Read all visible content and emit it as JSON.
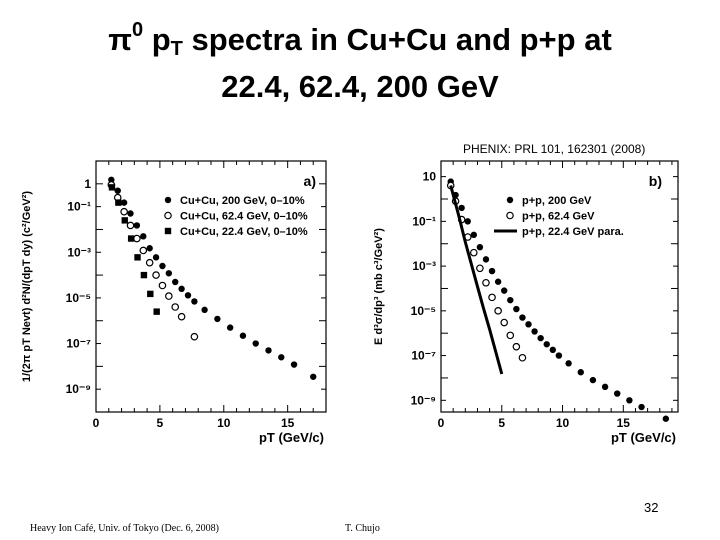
{
  "slide": {
    "title_line1_pi": "π",
    "title_line1_sup": "0",
    "title_line1_p": " p",
    "title_line1_sub": "T",
    "title_line1_rest": " spectra in Cu+Cu and p+p at",
    "title_line2": "22.4, 62.4, 200 GeV",
    "citation": "PHENIX: PRL 101, 162301 (2008)",
    "slide_number": "32",
    "footer_left": "Heavy Ion Café, Univ. of Tokyo (Dec. 6, 2008)",
    "footer_right": "T. Chujo"
  },
  "chart_data": [
    {
      "type": "scatter",
      "panel_label": "a)",
      "xlabel": "pT (GeV/c)",
      "ylabel": "1/(2π pT Nevt) d²N/(dpT dy) (c²/GeV²)",
      "xlim": [
        0,
        18
      ],
      "ylim": [
        1e-10,
        10
      ],
      "yscale": "log",
      "xticks": [
        0,
        5,
        10,
        15
      ],
      "ytick_labels": [
        "1",
        "10⁻¹",
        "10⁻³",
        "10⁻⁵",
        "10⁻⁷",
        "10⁻⁹"
      ],
      "ytick_values": [
        1,
        0.1,
        0.001,
        1e-05,
        1e-07,
        1e-09
      ],
      "legend_position": "top-right",
      "series": [
        {
          "name": "Cu+Cu, 200 GeV, 0–10%",
          "marker": "filled-circle",
          "x": [
            1.2,
            1.7,
            2.2,
            2.7,
            3.2,
            3.7,
            4.2,
            4.7,
            5.2,
            5.7,
            6.2,
            6.7,
            7.2,
            7.7,
            8.5,
            9.5,
            10.5,
            11.5,
            12.5,
            13.5,
            14.5,
            15.5,
            17.0
          ],
          "y": [
            1.5,
            0.5,
            0.15,
            0.05,
            0.015,
            0.005,
            0.0015,
            0.0006,
            0.00025,
            0.00012,
            5e-05,
            2.5e-05,
            1.3e-05,
            7e-06,
            3e-06,
            1.2e-06,
            5e-07,
            2.2e-07,
            1e-07,
            5e-08,
            2.5e-08,
            1.2e-08,
            3.5e-09
          ]
        },
        {
          "name": "Cu+Cu, 62.4 GeV, 0–10%",
          "marker": "open-circle",
          "x": [
            1.2,
            1.7,
            2.2,
            2.7,
            3.2,
            3.7,
            4.2,
            4.7,
            5.2,
            5.7,
            6.2,
            6.7,
            7.7
          ],
          "y": [
            0.9,
            0.25,
            0.06,
            0.015,
            0.004,
            0.0012,
            0.00035,
            0.0001,
            3.5e-05,
            1.2e-05,
            4e-06,
            1.5e-06,
            2e-07
          ]
        },
        {
          "name": "Cu+Cu, 22.4 GeV, 0–10%",
          "marker": "filled-square",
          "x": [
            1.25,
            1.75,
            2.25,
            2.75,
            3.25,
            3.75,
            4.25,
            4.75
          ],
          "y": [
            0.7,
            0.15,
            0.025,
            0.004,
            0.0006,
            0.0001,
            1.5e-05,
            2.5e-06
          ]
        }
      ]
    },
    {
      "type": "scatter",
      "panel_label": "b)",
      "xlabel": "pT (GeV/c)",
      "ylabel": "E d³σ/dp³ (mb c³/GeV²)",
      "xlim": [
        0,
        19.5
      ],
      "ylim": [
        3e-10,
        50
      ],
      "yscale": "log",
      "xticks": [
        0,
        5,
        10,
        15
      ],
      "ytick_labels": [
        "10",
        "10⁻¹",
        "10⁻³",
        "10⁻⁵",
        "10⁻⁷",
        "10⁻⁹"
      ],
      "ytick_values": [
        10,
        0.1,
        0.001,
        1e-05,
        1e-07,
        1e-09
      ],
      "legend_position": "top-right",
      "series": [
        {
          "name": "p+p, 200 GeV",
          "marker": "filled-circle",
          "x": [
            0.8,
            1.2,
            1.7,
            2.2,
            2.7,
            3.2,
            3.7,
            4.2,
            4.7,
            5.2,
            5.7,
            6.2,
            6.7,
            7.2,
            7.7,
            8.2,
            8.7,
            9.2,
            9.7,
            10.5,
            11.5,
            12.5,
            13.5,
            14.5,
            15.5,
            16.5,
            18.5
          ],
          "y": [
            6,
            1.5,
            0.4,
            0.1,
            0.025,
            0.007,
            0.002,
            0.0006,
            0.0002,
            8e-05,
            3e-05,
            1.2e-05,
            5e-06,
            2.5e-06,
            1.2e-06,
            6e-07,
            3.2e-07,
            1.8e-07,
            1e-07,
            4.5e-08,
            1.8e-08,
            8e-09,
            4e-09,
            2e-09,
            1e-09,
            5e-10,
            1.5e-10
          ]
        },
        {
          "name": "p+p, 62.4 GeV",
          "marker": "open-circle",
          "x": [
            0.8,
            1.2,
            1.7,
            2.2,
            2.7,
            3.2,
            3.7,
            4.2,
            4.7,
            5.2,
            5.7,
            6.2,
            6.7
          ],
          "y": [
            4,
            0.8,
            0.12,
            0.02,
            0.004,
            0.0008,
            0.00018,
            4e-05,
            1e-05,
            3e-06,
            8e-07,
            2.5e-07,
            8e-08
          ]
        },
        {
          "name": "p+p, 22.4 GeV para.",
          "marker": "thick-line",
          "x": [
            0.8,
            1.5,
            2.0,
            2.5,
            3.0,
            3.5,
            4.0,
            4.5,
            5.0
          ],
          "y": [
            4,
            0.15,
            0.012,
            0.0012,
            0.00012,
            1.3e-05,
            1.5e-06,
            1.5e-07,
            1.5e-08
          ]
        }
      ]
    }
  ]
}
